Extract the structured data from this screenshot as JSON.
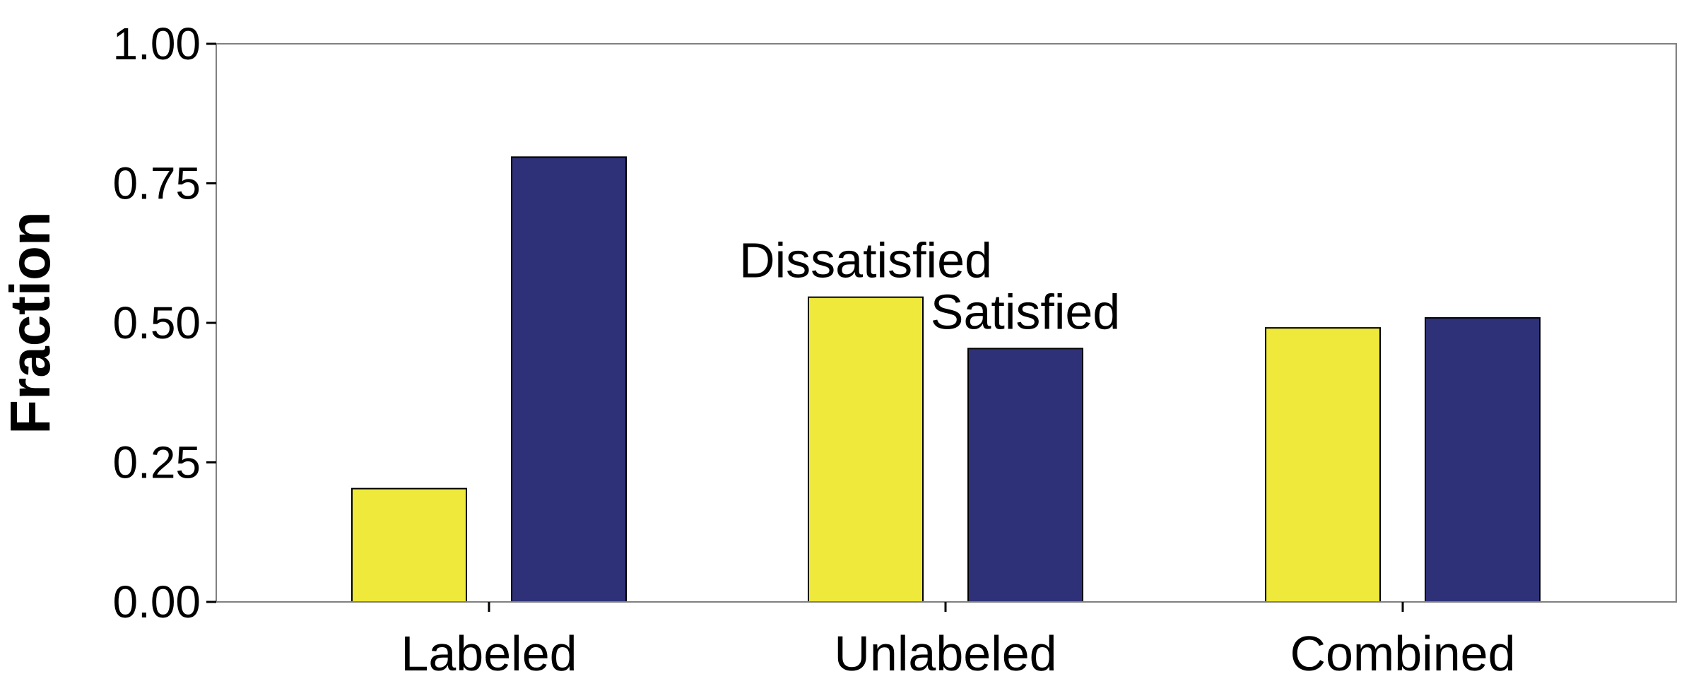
{
  "chart_data": {
    "type": "bar",
    "ylabel": "Fraction",
    "xlabel": "",
    "title": "",
    "categories": [
      "Labeled",
      "Unlabeled",
      "Combined"
    ],
    "ylim": [
      0,
      1
    ],
    "yticks": [
      "0.00",
      "0.25",
      "0.50",
      "0.75",
      "1.00"
    ],
    "ytick_values": [
      0,
      0.25,
      0.5,
      0.75,
      1.0
    ],
    "grid": false,
    "series": [
      {
        "name": "Dissatisfied",
        "color": "#EFE93B",
        "values": [
          0.203,
          0.546,
          0.491
        ]
      },
      {
        "name": "Satisfied",
        "color": "#2E3177",
        "values": [
          0.797,
          0.454,
          0.509
        ]
      }
    ],
    "annotations": [
      {
        "text": "Dissatisfied",
        "category": "Unlabeled",
        "series": "Dissatisfied"
      },
      {
        "text": "Satisfied",
        "category": "Unlabeled",
        "series": "Satisfied"
      }
    ]
  }
}
